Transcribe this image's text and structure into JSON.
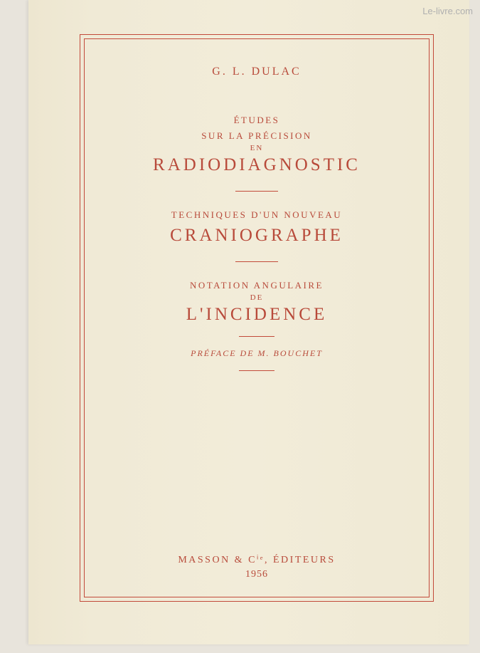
{
  "watermark": "Le-livre.com",
  "author": "G. L. DULAC",
  "section1": {
    "line1": "ÉTUDES",
    "line2": "SUR LA PRÉCISION",
    "line3": "EN",
    "main": "RADIODIAGNOSTIC"
  },
  "section2": {
    "line1": "TECHNIQUES D'UN NOUVEAU",
    "main": "CRANIOGRAPHE"
  },
  "section3": {
    "line1": "NOTATION ANGULAIRE",
    "line2": "DE",
    "main": "L'INCIDENCE"
  },
  "preface": "PRÉFACE DE M. BOUCHET",
  "publisher": "MASSON & Cⁱᵉ, ÉDITEURS",
  "year": "1956",
  "colors": {
    "text": "#b84a3a",
    "border": "#c24a3a",
    "page_bg": "#f0ead6",
    "outer_bg": "#e8e4dc"
  }
}
